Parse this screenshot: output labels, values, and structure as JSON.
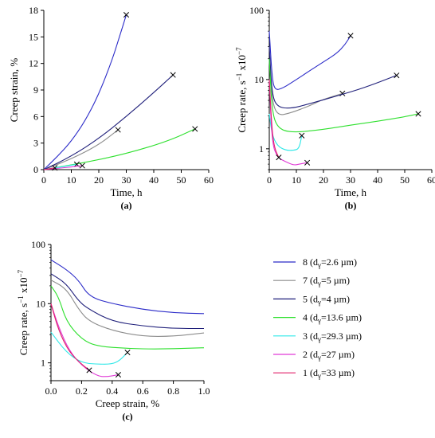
{
  "legend": {
    "entries": [
      {
        "num": "8",
        "d": "=2.6 µm",
        "color": "#2b2bc8"
      },
      {
        "num": "7",
        "d": "=5 µm",
        "color": "#8c8c8c"
      },
      {
        "num": "5",
        "d": "=4 µm",
        "color": "#1f1f7a"
      },
      {
        "num": "4",
        "d": "=13.6 µm",
        "color": "#2ee02e"
      },
      {
        "num": "3",
        "d": "=29.3 µm",
        "color": "#2ee8e8"
      },
      {
        "num": "2",
        "d": "=27 µm",
        "color": "#e03ad6"
      },
      {
        "num": "1",
        "d": "=33 µm",
        "color": "#e0206a"
      }
    ]
  },
  "chart_data": [
    {
      "panel": "(a)",
      "type": "line",
      "xlabel": "Time, h",
      "ylabel": "Creep strain, %",
      "xlim": [
        0,
        60
      ],
      "ylim": [
        0,
        18
      ],
      "xticks": [
        0,
        10,
        20,
        30,
        40,
        50,
        60
      ],
      "yticks": [
        0,
        3,
        6,
        9,
        12,
        15,
        18
      ],
      "scale": "linear",
      "series": [
        {
          "key": "8",
          "x": [
            0,
            5,
            10,
            15,
            20,
            25,
            28,
            30
          ],
          "y": [
            0,
            1.5,
            3.2,
            5.5,
            8.5,
            12.5,
            15.5,
            17.5
          ],
          "end_marker": true
        },
        {
          "key": "7",
          "x": [
            0,
            10,
            20,
            27
          ],
          "y": [
            0,
            1.2,
            2.8,
            4.5
          ],
          "end_marker": false
        },
        {
          "key": "5",
          "x": [
            0,
            10,
            20,
            30,
            40,
            47
          ],
          "y": [
            0,
            1.5,
            3.5,
            6.0,
            8.7,
            10.7
          ],
          "end_marker": true
        },
        {
          "key": "4",
          "x": [
            0,
            15,
            30,
            45,
            55
          ],
          "y": [
            0,
            0.8,
            1.8,
            3.2,
            4.6
          ],
          "end_marker": true
        },
        {
          "key": "3",
          "x": [
            0,
            4,
            8,
            12
          ],
          "y": [
            0,
            0.2,
            0.4,
            0.6
          ],
          "end_marker": true
        },
        {
          "key": "2",
          "x": [
            0,
            5,
            10,
            14
          ],
          "y": [
            0,
            0.15,
            0.3,
            0.45
          ],
          "end_marker": true
        },
        {
          "key": "1",
          "x": [
            0,
            2,
            4
          ],
          "y": [
            0,
            0.1,
            0.2
          ],
          "end_marker": true
        }
      ],
      "extra_markers": [
        {
          "x": 27,
          "y": 4.5
        }
      ]
    },
    {
      "panel": "(b)",
      "type": "line",
      "xlabel": "Time, h",
      "ylabel": "Creep rate, s",
      "ylabel_sup": "−1",
      "ylabel_tail": "x10",
      "ylabel_tail_sup": "−7",
      "xlim": [
        0,
        60
      ],
      "ylim": [
        0.5,
        100
      ],
      "xticks": [
        0,
        10,
        20,
        30,
        40,
        50,
        60
      ],
      "yticks": [
        1,
        10,
        100
      ],
      "scale": "log",
      "series": [
        {
          "key": "8",
          "x": [
            0,
            1,
            2,
            5,
            10,
            15,
            20,
            25,
            28,
            30
          ],
          "y": [
            50,
            11,
            7,
            7.5,
            10,
            13.5,
            18,
            24,
            32,
            43
          ],
          "end_marker": true
        },
        {
          "key": "7",
          "x": [
            0,
            1,
            3,
            8,
            15,
            20,
            27
          ],
          "y": [
            20,
            5,
            3,
            3.3,
            4.2,
            5.2,
            6.3
          ],
          "end_marker": true
        },
        {
          "key": "5",
          "x": [
            0,
            1,
            3,
            8,
            15,
            25,
            35,
            47
          ],
          "y": [
            30,
            6,
            4,
            3.8,
            4.5,
            5.8,
            7.6,
            11.5
          ],
          "end_marker": true
        },
        {
          "key": "4",
          "x": [
            0,
            1,
            3,
            8,
            20,
            30,
            40,
            50,
            55
          ],
          "y": [
            20,
            3.5,
            2,
            1.7,
            1.9,
            2.2,
            2.5,
            2.9,
            3.2
          ],
          "end_marker": true
        },
        {
          "key": "3",
          "x": [
            0,
            1,
            3,
            6,
            9,
            11,
            12
          ],
          "y": [
            3.2,
            1.6,
            1.1,
            0.95,
            0.95,
            1.0,
            1.55
          ],
          "end_marker": true
        },
        {
          "key": "2",
          "x": [
            0,
            1,
            3,
            6,
            9,
            11,
            14
          ],
          "y": [
            10,
            1.2,
            0.75,
            0.65,
            0.58,
            0.6,
            0.63
          ],
          "end_marker": true
        },
        {
          "key": "1",
          "x": [
            0,
            1,
            2,
            3.5
          ],
          "y": [
            10,
            1.8,
            1.0,
            0.75
          ],
          "end_marker": true
        }
      ]
    },
    {
      "panel": "(c)",
      "type": "line",
      "xlabel": "Creep strain, %",
      "ylabel": "Creep rate, s",
      "ylabel_sup": "−1",
      "ylabel_tail": "x10",
      "ylabel_tail_sup": "−7",
      "xlim": [
        0,
        1.0
      ],
      "ylim": [
        0.5,
        100
      ],
      "xticks": [
        0.0,
        0.2,
        0.4,
        0.6,
        0.8,
        1.0
      ],
      "yticks": [
        1,
        10,
        100
      ],
      "scale": "log",
      "series": [
        {
          "key": "8",
          "x": [
            0,
            0.1,
            0.18,
            0.25,
            0.4,
            0.6,
            0.8,
            1.0
          ],
          "y": [
            55,
            38,
            25,
            13,
            10,
            8,
            7,
            6.8
          ],
          "end_marker": false
        },
        {
          "key": "7",
          "x": [
            0,
            0.1,
            0.18,
            0.25,
            0.4,
            0.6,
            0.8,
            1.0
          ],
          "y": [
            25,
            18,
            8,
            5,
            3.5,
            2.8,
            2.8,
            3.2
          ],
          "end_marker": false
        },
        {
          "key": "5",
          "x": [
            0,
            0.1,
            0.18,
            0.25,
            0.4,
            0.6,
            0.8,
            1.0
          ],
          "y": [
            32,
            22,
            11,
            8,
            5,
            4.2,
            3.8,
            3.8
          ],
          "end_marker": false
        },
        {
          "key": "4",
          "x": [
            0,
            0.05,
            0.1,
            0.2,
            0.3,
            0.5,
            0.7,
            1.0
          ],
          "y": [
            20,
            13,
            5,
            2.5,
            1.9,
            1.75,
            1.7,
            1.8
          ],
          "end_marker": false
        },
        {
          "key": "3",
          "x": [
            0,
            0.1,
            0.2,
            0.3,
            0.4,
            0.45,
            0.5
          ],
          "y": [
            3.3,
            1.5,
            1.0,
            0.95,
            0.95,
            1.1,
            1.5
          ],
          "end_marker": true
        },
        {
          "key": "2",
          "x": [
            0,
            0.05,
            0.12,
            0.2,
            0.3,
            0.36,
            0.44
          ],
          "y": [
            10,
            4,
            1.6,
            0.9,
            0.6,
            0.58,
            0.63
          ],
          "end_marker": true
        },
        {
          "key": "1",
          "x": [
            0,
            0.05,
            0.12,
            0.2,
            0.25
          ],
          "y": [
            10,
            3.5,
            1.5,
            0.95,
            0.75
          ],
          "end_marker": true
        }
      ]
    }
  ]
}
